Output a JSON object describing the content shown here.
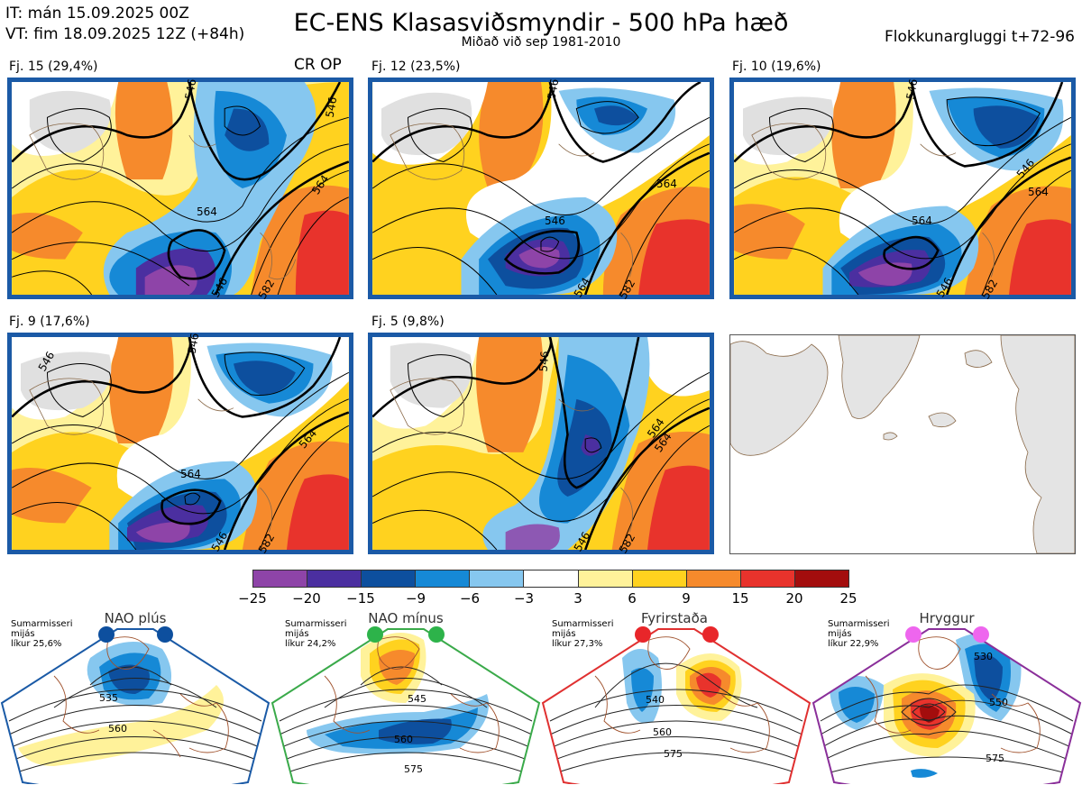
{
  "header": {
    "init_time": "IT: mán 15.09.2025 00Z",
    "valid_time": "VT: fim 18.09.2025 12Z  (+84h)",
    "title": "EC-ENS Klasasviðsmyndir - 500 hPa hæð",
    "subtitle": "Miðað við sep 1981-2010",
    "window": "Flokkunargluggi t+72-96"
  },
  "panels": [
    {
      "label": "Fj. 15 (29,4%)",
      "badge": "CR OP",
      "contours": [
        "546",
        "546",
        "564",
        "546",
        "564",
        "582"
      ]
    },
    {
      "label": "Fj. 12 (23,5%)",
      "contours": [
        "546",
        "564",
        "546",
        "564",
        "582"
      ]
    },
    {
      "label": "Fj. 10 (19,6%)",
      "contours": [
        "546",
        "546",
        "564",
        "546",
        "564",
        "582"
      ]
    },
    {
      "label": "Fj. 9 (17,6%)",
      "contours": [
        "546",
        "546",
        "564",
        "546",
        "564",
        "582"
      ]
    },
    {
      "label": "Fj. 5 (9,8%)",
      "contours": [
        "546",
        "546",
        "564",
        "564",
        "582"
      ]
    }
  ],
  "colorbar": {
    "ticks": [
      "−25",
      "−20",
      "−15",
      "−9",
      "−6",
      "−3",
      "3",
      "6",
      "9",
      "15",
      "20",
      "25"
    ],
    "colors": [
      "#8e44a8",
      "#4b2fa0",
      "#0d4f9e",
      "#1689d6",
      "#86c7ef",
      "#ffffff",
      "#fff29a",
      "#ffd21f",
      "#f68a2c",
      "#e8332c",
      "#a30d0d"
    ]
  },
  "regimes": [
    {
      "name": "NAO plús",
      "info": [
        "Sumarmisseri",
        "mijás",
        "líkur 25,6%"
      ],
      "color": "#1a5aa6",
      "dot_color": "#0d4f9e",
      "contours": [
        "535",
        "560"
      ]
    },
    {
      "name": "NAO mínus",
      "info": [
        "Sumarmisseri",
        "mijás",
        "líkur 24,2%"
      ],
      "color": "#3aaa4a",
      "dot_color": "#2db34a",
      "contours": [
        "545",
        "560",
        "575"
      ]
    },
    {
      "name": "Fyrirstaða",
      "info": [
        "Sumarmisseri",
        "mijás",
        "líkur 27,3%"
      ],
      "color": "#e03030",
      "dot_color": "#e8262a",
      "contours": [
        "540",
        "560",
        "575"
      ]
    },
    {
      "name": "Hryggur",
      "info": [
        "Sumarmisseri",
        "mijás",
        "líkur 22,9%"
      ],
      "color": "#8a2f9a",
      "dot_color": "#ee66ee",
      "contours": [
        "530",
        "550",
        "575"
      ]
    }
  ]
}
